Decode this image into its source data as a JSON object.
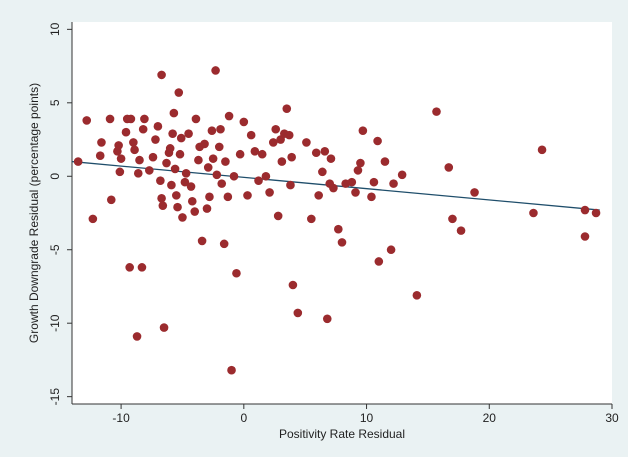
{
  "chart_data": {
    "type": "scatter",
    "title": "",
    "xlabel": "Positivity Rate Residual",
    "ylabel": "Growth Downgrade Residual (percentage points)",
    "xlim": [
      -14,
      30
    ],
    "ylim": [
      -15.5,
      10.5
    ],
    "xticks": [
      -10,
      0,
      10,
      20,
      30
    ],
    "yticks": [
      -15,
      -10,
      -5,
      0,
      5,
      10
    ],
    "x_tick_labels": [
      "-10",
      "0",
      "10",
      "20",
      "30"
    ],
    "y_tick_labels": [
      "-15",
      "-10",
      "-5",
      "0",
      "5",
      "10"
    ],
    "grid": false,
    "legend": "none",
    "colors": {
      "background": "#eaf2f3",
      "plot_background": "#ffffff",
      "point": "#9b2b2e",
      "fit_line": "#1f4e6b",
      "axis": "#333333"
    },
    "fit_line": {
      "x": [
        -14,
        29
      ],
      "y": [
        1.0,
        -2.3
      ]
    },
    "points": [
      {
        "x": -13.5,
        "y": 1.0
      },
      {
        "x": -12.8,
        "y": 3.8
      },
      {
        "x": -12.3,
        "y": -2.9
      },
      {
        "x": -11.7,
        "y": 1.4
      },
      {
        "x": -11.6,
        "y": 2.3
      },
      {
        "x": -10.9,
        "y": 3.9
      },
      {
        "x": -10.8,
        "y": -1.6
      },
      {
        "x": -10.3,
        "y": 1.7
      },
      {
        "x": -10.2,
        "y": 2.1
      },
      {
        "x": -10.1,
        "y": 0.3
      },
      {
        "x": -10.0,
        "y": 1.2
      },
      {
        "x": -9.6,
        "y": 3.0
      },
      {
        "x": -9.5,
        "y": 3.9
      },
      {
        "x": -9.2,
        "y": 3.9
      },
      {
        "x": -9.0,
        "y": 2.3
      },
      {
        "x": -8.9,
        "y": 1.8
      },
      {
        "x": -9.3,
        "y": -6.2
      },
      {
        "x": -8.6,
        "y": 0.2
      },
      {
        "x": -8.5,
        "y": 1.1
      },
      {
        "x": -8.2,
        "y": 3.2
      },
      {
        "x": -8.1,
        "y": 3.9
      },
      {
        "x": -8.3,
        "y": -6.2
      },
      {
        "x": -8.7,
        "y": -10.9
      },
      {
        "x": -7.7,
        "y": 0.4
      },
      {
        "x": -7.4,
        "y": 1.3
      },
      {
        "x": -7.2,
        "y": 2.5
      },
      {
        "x": -7.0,
        "y": 3.4
      },
      {
        "x": -6.8,
        "y": -0.3
      },
      {
        "x": -6.7,
        "y": -1.5
      },
      {
        "x": -6.6,
        "y": -2.0
      },
      {
        "x": -6.7,
        "y": 6.9
      },
      {
        "x": -6.5,
        "y": -10.3
      },
      {
        "x": -6.3,
        "y": 0.9
      },
      {
        "x": -6.1,
        "y": 1.6
      },
      {
        "x": -6.0,
        "y": 1.9
      },
      {
        "x": -5.9,
        "y": -0.6
      },
      {
        "x": -5.8,
        "y": 2.9
      },
      {
        "x": -5.7,
        "y": 4.3
      },
      {
        "x": -5.6,
        "y": 0.5
      },
      {
        "x": -5.5,
        "y": -1.3
      },
      {
        "x": -5.4,
        "y": -2.1
      },
      {
        "x": -5.3,
        "y": 5.7
      },
      {
        "x": -5.2,
        "y": 1.5
      },
      {
        "x": -5.1,
        "y": 2.6
      },
      {
        "x": -5.0,
        "y": -2.8
      },
      {
        "x": -4.8,
        "y": -0.4
      },
      {
        "x": -4.7,
        "y": 0.2
      },
      {
        "x": -4.5,
        "y": 2.9
      },
      {
        "x": -4.3,
        "y": -0.7
      },
      {
        "x": -4.2,
        "y": -1.7
      },
      {
        "x": -4.0,
        "y": -2.4
      },
      {
        "x": -3.9,
        "y": 3.9
      },
      {
        "x": -3.7,
        "y": 1.1
      },
      {
        "x": -3.6,
        "y": 2.0
      },
      {
        "x": -3.4,
        "y": -4.4
      },
      {
        "x": -3.2,
        "y": 2.2
      },
      {
        "x": -3.0,
        "y": -2.2
      },
      {
        "x": -2.9,
        "y": 0.6
      },
      {
        "x": -2.8,
        "y": -1.4
      },
      {
        "x": -2.6,
        "y": 3.1
      },
      {
        "x": -2.5,
        "y": 1.2
      },
      {
        "x": -2.3,
        "y": 7.2
      },
      {
        "x": -2.2,
        "y": 0.1
      },
      {
        "x": -2.0,
        "y": 2.0
      },
      {
        "x": -1.9,
        "y": 3.2
      },
      {
        "x": -1.8,
        "y": -0.5
      },
      {
        "x": -1.6,
        "y": -4.6
      },
      {
        "x": -1.5,
        "y": 1.0
      },
      {
        "x": -1.3,
        "y": -1.4
      },
      {
        "x": -1.2,
        "y": 4.1
      },
      {
        "x": -1.0,
        "y": -13.2
      },
      {
        "x": -0.8,
        "y": 0.0
      },
      {
        "x": -0.6,
        "y": -6.6
      },
      {
        "x": -0.3,
        "y": 1.5
      },
      {
        "x": 0.0,
        "y": 3.7
      },
      {
        "x": 0.3,
        "y": -1.3
      },
      {
        "x": 0.6,
        "y": 2.8
      },
      {
        "x": 0.9,
        "y": 1.7
      },
      {
        "x": 1.2,
        "y": -0.3
      },
      {
        "x": 1.5,
        "y": 1.5
      },
      {
        "x": 1.8,
        "y": 0.0
      },
      {
        "x": 2.1,
        "y": -1.1
      },
      {
        "x": 2.4,
        "y": 2.3
      },
      {
        "x": 2.6,
        "y": 3.2
      },
      {
        "x": 2.8,
        "y": -2.7
      },
      {
        "x": 3.0,
        "y": 2.5
      },
      {
        "x": 3.1,
        "y": 1.0
      },
      {
        "x": 3.3,
        "y": 2.9
      },
      {
        "x": 3.5,
        "y": 4.6
      },
      {
        "x": 3.7,
        "y": 2.8
      },
      {
        "x": 3.8,
        "y": -0.6
      },
      {
        "x": 3.9,
        "y": 1.3
      },
      {
        "x": 4.0,
        "y": -7.4
      },
      {
        "x": 4.4,
        "y": -9.3
      },
      {
        "x": 5.1,
        "y": 2.3
      },
      {
        "x": 5.5,
        "y": -2.9
      },
      {
        "x": 5.9,
        "y": 1.6
      },
      {
        "x": 6.1,
        "y": -1.3
      },
      {
        "x": 6.4,
        "y": 0.3
      },
      {
        "x": 6.6,
        "y": 1.7
      },
      {
        "x": 6.8,
        "y": -9.7
      },
      {
        "x": 7.0,
        "y": -0.5
      },
      {
        "x": 7.1,
        "y": 1.2
      },
      {
        "x": 7.3,
        "y": -0.8
      },
      {
        "x": 7.7,
        "y": -3.6
      },
      {
        "x": 8.0,
        "y": -4.5
      },
      {
        "x": 8.3,
        "y": -0.5
      },
      {
        "x": 8.8,
        "y": -0.4
      },
      {
        "x": 9.1,
        "y": -1.1
      },
      {
        "x": 9.3,
        "y": 0.4
      },
      {
        "x": 9.5,
        "y": 0.9
      },
      {
        "x": 9.7,
        "y": 3.1
      },
      {
        "x": 10.4,
        "y": -1.4
      },
      {
        "x": 10.6,
        "y": -0.4
      },
      {
        "x": 10.9,
        "y": 2.4
      },
      {
        "x": 11.0,
        "y": -5.8
      },
      {
        "x": 11.5,
        "y": 1.0
      },
      {
        "x": 12.0,
        "y": -5.0
      },
      {
        "x": 12.2,
        "y": -0.5
      },
      {
        "x": 12.9,
        "y": 0.1
      },
      {
        "x": 14.1,
        "y": -8.1
      },
      {
        "x": 15.7,
        "y": 4.4
      },
      {
        "x": 16.7,
        "y": 0.6
      },
      {
        "x": 17.0,
        "y": -2.9
      },
      {
        "x": 17.7,
        "y": -3.7
      },
      {
        "x": 18.8,
        "y": -1.1
      },
      {
        "x": 23.6,
        "y": -2.5
      },
      {
        "x": 24.3,
        "y": 1.8
      },
      {
        "x": 27.8,
        "y": -2.3
      },
      {
        "x": 27.8,
        "y": -4.1
      },
      {
        "x": 28.7,
        "y": -2.5
      }
    ]
  }
}
